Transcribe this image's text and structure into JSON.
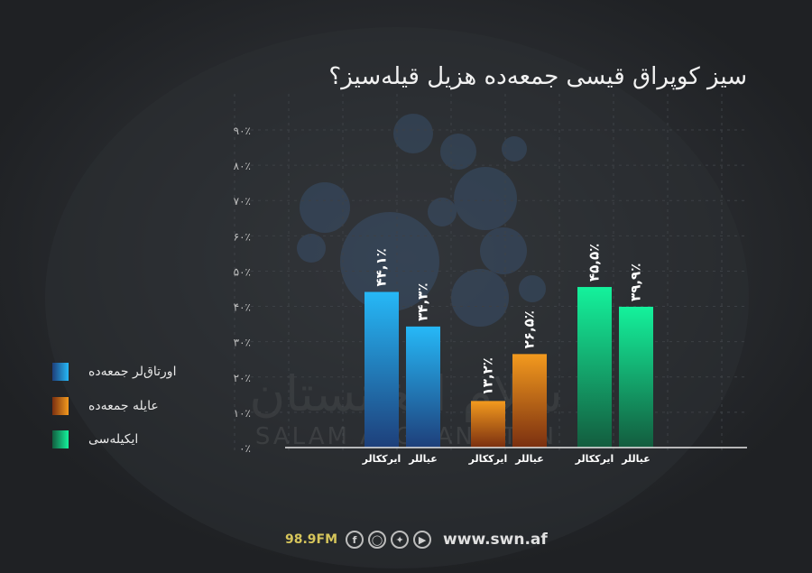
{
  "title": "سیز کوپراق قیسی جمعه‌ده هزیل قیله‌سیز؟",
  "watermark": {
    "arabic": "سلام افغانستان",
    "latin": "SALAM AFGHANISTAN"
  },
  "chart_data": {
    "type": "bar",
    "title": "سیز کوپراق قیسی جمعه‌ده هزیل قیله‌سیز؟",
    "ylim": [
      0,
      90
    ],
    "yticks": [
      "۰٪",
      "۱۰٪",
      "۲۰٪",
      "۳۰٪",
      "۴۰٪",
      "۵۰٪",
      "۶۰٪",
      "۷۰٪",
      "۸۰٪",
      "۹۰٪"
    ],
    "grid": true,
    "legend_position": "left",
    "categories": [
      "ایرککالر",
      "عیاللر"
    ],
    "series": [
      {
        "name": "اورتاق‌لر جمعه‌ده",
        "values": [
          44.1,
          34.3
        ],
        "labels": [
          "۴۴,۱٪",
          "۳۴,۳٪"
        ],
        "color": "#2aa8e8"
      },
      {
        "name": "عایله جمعه‌ده",
        "values": [
          13.2,
          26.5
        ],
        "labels": [
          "۱۳,۲٪",
          "۲۶,۵٪"
        ],
        "color": "#ee8a1a"
      },
      {
        "name": "ایکیله‌سی",
        "values": [
          45.5,
          39.9
        ],
        "labels": [
          "۴۵,۵٪",
          "۳۹,۹٪"
        ],
        "color": "#1ec97f"
      }
    ]
  },
  "footer": {
    "frequency": "98.9FM",
    "url": "www.swn.af",
    "icons": [
      "facebook-icon",
      "instagram-icon",
      "twitter-icon",
      "youtube-icon"
    ]
  }
}
